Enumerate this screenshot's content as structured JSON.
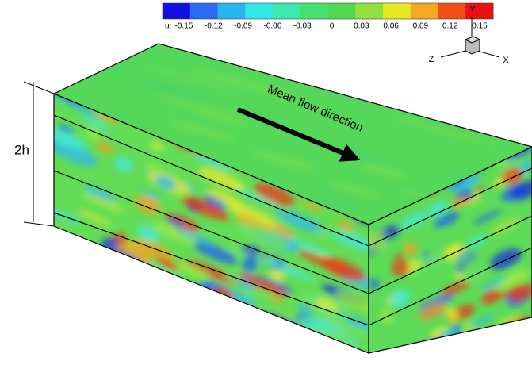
{
  "colorbar": {
    "label": "u:",
    "ticks": [
      "-0.15",
      "-0.12",
      "-0.09",
      "-0.06",
      "-0.03",
      "0",
      "0.03",
      "0.06",
      "0.09",
      "0.12",
      "0.15"
    ]
  },
  "axes": {
    "x": "X",
    "y": "Y",
    "z": "Z"
  },
  "dimension_label": "2h",
  "annotation": "Mean flow direction"
}
